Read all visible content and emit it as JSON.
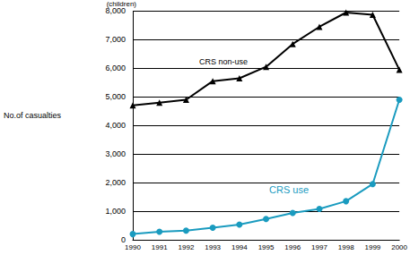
{
  "chart_data": {
    "type": "line",
    "ylabel": "No.of casualties",
    "annotations": [
      "(children)"
    ],
    "categories": [
      "1990",
      "1991",
      "1992",
      "1993",
      "1994",
      "1995",
      "1996",
      "1997",
      "1998",
      "1999",
      "2000"
    ],
    "series": [
      {
        "name": "CRS non-use",
        "color": "#000000",
        "marker": "triangle",
        "values": [
          4700,
          4800,
          4900,
          5550,
          5650,
          6050,
          6850,
          7450,
          7950,
          7870,
          5950
        ]
      },
      {
        "name": "CRS use",
        "color": "#1a9bbf",
        "marker": "circle",
        "values": [
          200,
          280,
          320,
          420,
          530,
          730,
          940,
          1080,
          1350,
          1950,
          4900
        ]
      }
    ],
    "ylim": [
      0,
      8000
    ],
    "yticks": [
      0,
      {
        "value": 1000,
        "label": "1,000"
      },
      {
        "value": 2000,
        "label": "2,000"
      },
      {
        "value": 3000,
        "label": "3,000"
      },
      {
        "value": 4000,
        "label": "4,000"
      },
      {
        "value": 5000,
        "label": "5,000"
      },
      {
        "value": 6000,
        "label": "6,000"
      },
      {
        "value": 7000,
        "label": "7,000"
      },
      {
        "value": 8000,
        "label": "8,000"
      }
    ],
    "grid": true
  }
}
